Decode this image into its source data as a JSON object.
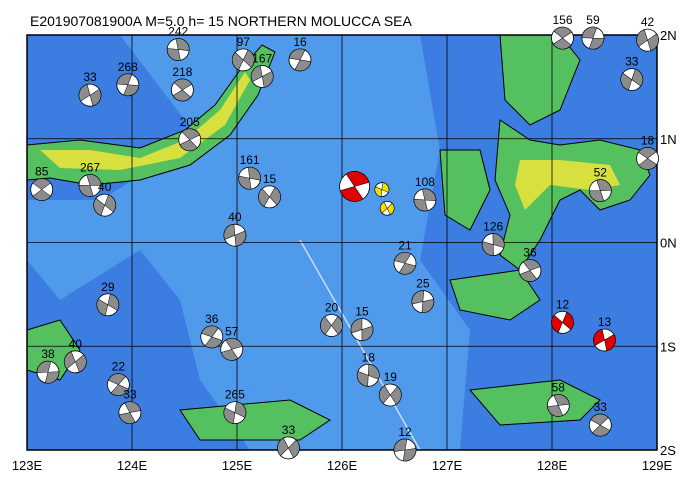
{
  "map": {
    "title": "E201907081900A M=5.0 h= 15 NORTHERN MOLUCCA SEA",
    "xlim": [
      123,
      129
    ],
    "ylim": [
      -2,
      2
    ],
    "xticks": [
      {
        "value": 123,
        "label": "123E"
      },
      {
        "value": 124,
        "label": "124E"
      },
      {
        "value": 125,
        "label": "125E"
      },
      {
        "value": 126,
        "label": "126E"
      },
      {
        "value": 127,
        "label": "127E"
      },
      {
        "value": 128,
        "label": "128E"
      },
      {
        "value": 129,
        "label": "129E"
      }
    ],
    "yticks": [
      {
        "value": 2,
        "label": "2N"
      },
      {
        "value": 1,
        "label": "1N"
      },
      {
        "value": 0,
        "label": "0N"
      },
      {
        "value": -1,
        "label": "1S"
      },
      {
        "value": -2,
        "label": "2S"
      }
    ],
    "grid": true,
    "color": "#8c8c8c",
    "highlight_color": "#e00000",
    "events": [
      {
        "lon": 123.14,
        "lat": 0.51,
        "depth": 85
      },
      {
        "lon": 123.6,
        "lat": 0.55,
        "depth": 267
      },
      {
        "lon": 123.74,
        "lat": 0.36,
        "depth": 40
      },
      {
        "lon": 123.6,
        "lat": 1.42,
        "depth": 33
      },
      {
        "lon": 123.96,
        "lat": 1.52,
        "depth": 268
      },
      {
        "lon": 124.48,
        "lat": 1.47,
        "depth": 218
      },
      {
        "lon": 124.44,
        "lat": 1.86,
        "depth": 242
      },
      {
        "lon": 125.06,
        "lat": 1.76,
        "depth": 97
      },
      {
        "lon": 125.24,
        "lat": 1.6,
        "depth": 167
      },
      {
        "lon": 125.6,
        "lat": 1.76,
        "depth": 16
      },
      {
        "lon": 124.55,
        "lat": 0.99,
        "depth": 205
      },
      {
        "lon": 125.12,
        "lat": 0.62,
        "depth": 161
      },
      {
        "lon": 125.31,
        "lat": 0.44,
        "depth": 15
      },
      {
        "lon": 124.98,
        "lat": 0.07,
        "depth": 40
      },
      {
        "lon": 126.6,
        "lat": -0.2,
        "depth": 21
      },
      {
        "lon": 127.79,
        "lat": -0.27,
        "depth": 36
      },
      {
        "lon": 127.44,
        "lat": -0.02,
        "depth": 126
      },
      {
        "lon": 125.9,
        "lat": -0.8,
        "depth": 20
      },
      {
        "lon": 126.19,
        "lat": -0.84,
        "depth": 15
      },
      {
        "lon": 124.76,
        "lat": -0.91,
        "depth": 36
      },
      {
        "lon": 124.95,
        "lat": -1.03,
        "depth": 57
      },
      {
        "lon": 126.25,
        "lat": -1.28,
        "depth": 18
      },
      {
        "lon": 126.46,
        "lat": -1.47,
        "depth": 19
      },
      {
        "lon": 126.77,
        "lat": -0.57,
        "depth": 25
      },
      {
        "lon": 123.87,
        "lat": -1.37,
        "depth": 22
      },
      {
        "lon": 123.98,
        "lat": -1.64,
        "depth": 33
      },
      {
        "lon": 124.98,
        "lat": -1.64,
        "depth": 265
      },
      {
        "lon": 125.49,
        "lat": -1.98,
        "depth": 33
      },
      {
        "lon": 126.6,
        "lat": -2.0,
        "depth": 12
      },
      {
        "lon": 128.46,
        "lat": -1.76,
        "depth": 33
      },
      {
        "lon": 128.06,
        "lat": -1.57,
        "depth": 58
      },
      {
        "lon": 123.77,
        "lat": -0.6,
        "depth": 29
      },
      {
        "lon": 123.46,
        "lat": -1.15,
        "depth": 40
      },
      {
        "lon": 123.2,
        "lat": -1.25,
        "depth": 38
      },
      {
        "lon": 128.91,
        "lat": 0.81,
        "depth": 18
      },
      {
        "lon": 128.46,
        "lat": 0.5,
        "depth": 52
      },
      {
        "lon": 128.76,
        "lat": 1.57,
        "depth": 33
      },
      {
        "lon": 128.91,
        "lat": 1.95,
        "depth": 42
      },
      {
        "lon": 128.39,
        "lat": 1.97,
        "depth": 59
      },
      {
        "lon": 128.1,
        "lat": 1.97,
        "depth": 156
      },
      {
        "lon": 126.79,
        "lat": 0.41,
        "depth": 108
      },
      {
        "lon": 128.1,
        "lat": -0.77,
        "depth": 12,
        "highlight": true
      },
      {
        "lon": 128.5,
        "lat": -0.94,
        "depth": 13,
        "highlight": true
      }
    ],
    "main_events": [
      {
        "lon": 126.12,
        "lat": 0.54
      },
      {
        "lon": 126.38,
        "lat": 0.51
      },
      {
        "lon": 126.43,
        "lat": 0.33
      }
    ]
  }
}
